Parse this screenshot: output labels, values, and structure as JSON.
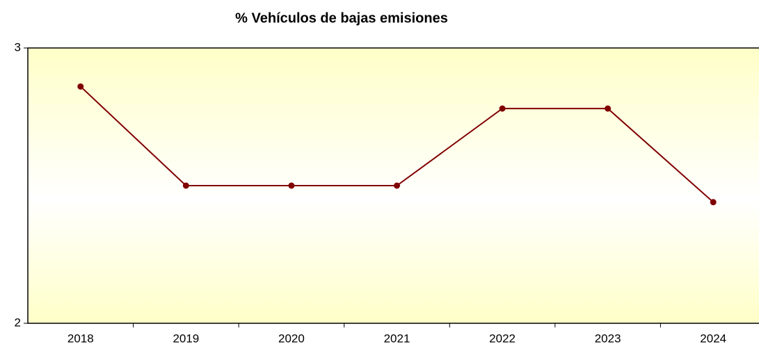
{
  "chart_data": {
    "type": "line",
    "title": "% Vehículos de bajas emisiones",
    "categories": [
      "2018",
      "2019",
      "2020",
      "2021",
      "2022",
      "2023",
      "2024"
    ],
    "values": [
      2.86,
      2.5,
      2.5,
      2.5,
      2.78,
      2.78,
      2.44
    ],
    "color": "#800000",
    "ylim": [
      2,
      3
    ],
    "yticks": [
      2,
      3
    ],
    "grid": false
  }
}
